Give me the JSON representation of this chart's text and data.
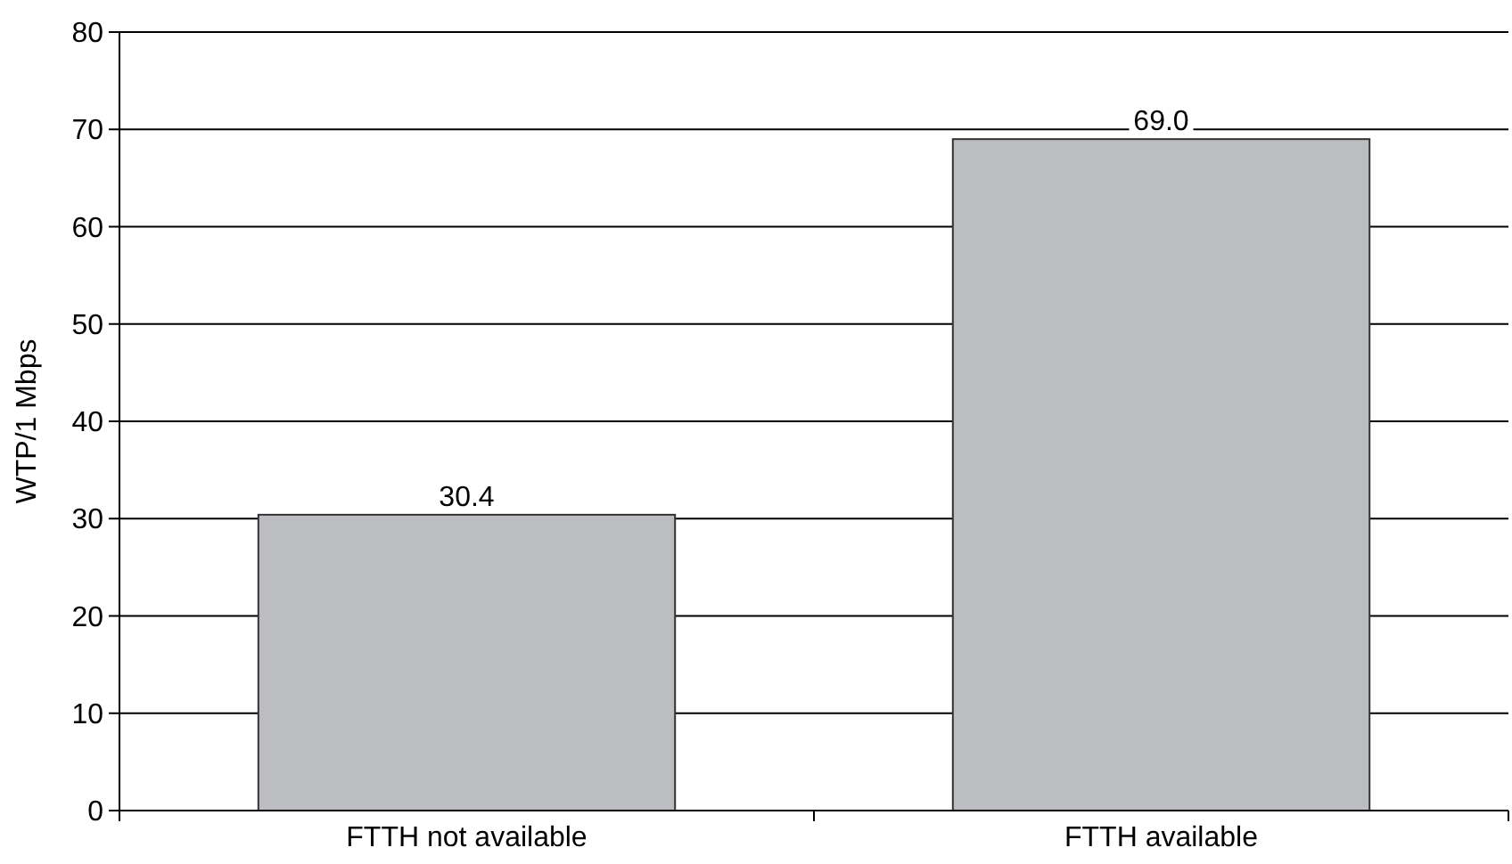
{
  "chart_data": {
    "type": "bar",
    "ylabel": "WTP/1 Mbps",
    "categories": [
      "FTTH not available",
      "FTTH available"
    ],
    "values": [
      30.4,
      69.0
    ],
    "value_labels": [
      "30.4",
      "69.0"
    ],
    "color": "#bcbdc0",
    "ylim": [
      0,
      80
    ],
    "yticks": [
      0,
      10,
      20,
      30,
      40,
      50,
      60,
      70,
      80
    ],
    "grid": "y"
  }
}
